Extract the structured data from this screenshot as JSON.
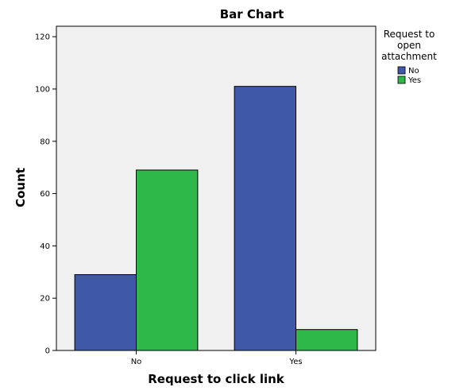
{
  "chart_data": {
    "type": "bar",
    "title": "Bar Chart",
    "xlabel": "Request to click link",
    "ylabel": "Count",
    "categories": [
      "No",
      "Yes"
    ],
    "series": [
      {
        "name": "No",
        "values": [
          29,
          101
        ],
        "color": "#3f58a8"
      },
      {
        "name": "Yes",
        "values": [
          69,
          8
        ],
        "color": "#2fb84a"
      }
    ],
    "ylim": [
      0,
      124
    ],
    "yticks": [
      0,
      20,
      40,
      60,
      80,
      100,
      120
    ],
    "grid": false,
    "legend": {
      "title_lines": [
        "Request to",
        "open",
        "attachment"
      ],
      "placement": "right"
    },
    "plot_background": "#f0f0f0"
  }
}
